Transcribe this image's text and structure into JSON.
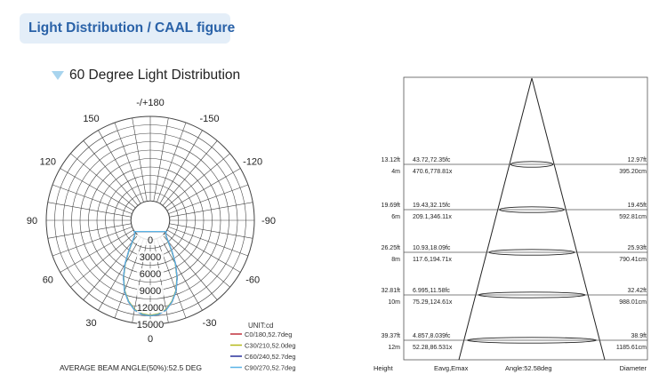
{
  "header": {
    "title": "Light Distribution / CAAL figure"
  },
  "subtitle": "60 Degree Light Distribution",
  "polar": {
    "angle_labels": [
      {
        "text": "-/+180",
        "deg": 180
      },
      {
        "text": "150",
        "deg": 150
      },
      {
        "text": "-150",
        "deg": -150
      },
      {
        "text": "120",
        "deg": 120
      },
      {
        "text": "-120",
        "deg": -120
      },
      {
        "text": "90",
        "deg": 90
      },
      {
        "text": "-90",
        "deg": -90
      },
      {
        "text": "60",
        "deg": 60
      },
      {
        "text": "-60",
        "deg": -60
      },
      {
        "text": "30",
        "deg": 30
      },
      {
        "text": "-30",
        "deg": -30
      },
      {
        "text": "0",
        "deg": 0
      }
    ],
    "radial_labels": [
      "0",
      "3000",
      "6000",
      "9000",
      "12000",
      "15000"
    ],
    "radial_values": [
      0,
      3000,
      6000,
      9000,
      12000,
      15000
    ],
    "unit": "UNIT:cd",
    "legend": [
      {
        "label": "C0/180,52.7deg",
        "color": "#c0303a"
      },
      {
        "label": "C30/210,52.0deg",
        "color": "#b5b81a"
      },
      {
        "label": "C60/240,52.7deg",
        "color": "#28309a"
      },
      {
        "label": "C90/270,52.7deg",
        "color": "#5ab4e6"
      }
    ],
    "beam_angle_text": "AVERAGE BEAM ANGLE(50%):52.5 DEG"
  },
  "chart_data": {
    "type": "polar",
    "radial_max": 15000,
    "angle_unit": "deg",
    "series": [
      {
        "name": "C0/180,52.7deg",
        "color": "#c0303a",
        "points": [
          [
            0,
            13500
          ],
          [
            5,
            13300
          ],
          [
            10,
            12700
          ],
          [
            15,
            11500
          ],
          [
            20,
            9900
          ],
          [
            25,
            7800
          ],
          [
            30,
            5500
          ],
          [
            35,
            3200
          ],
          [
            40,
            1500
          ],
          [
            45,
            500
          ],
          [
            50,
            100
          ],
          [
            55,
            0
          ]
        ]
      },
      {
        "name": "C30/210,52.0deg",
        "color": "#b5b81a",
        "points": [
          [
            0,
            13400
          ],
          [
            5,
            13200
          ],
          [
            10,
            12600
          ],
          [
            15,
            11400
          ],
          [
            20,
            9800
          ],
          [
            25,
            7700
          ],
          [
            30,
            5400
          ],
          [
            35,
            3100
          ],
          [
            40,
            1400
          ],
          [
            45,
            450
          ],
          [
            50,
            90
          ],
          [
            55,
            0
          ]
        ]
      },
      {
        "name": "C60/240,52.7deg",
        "color": "#28309a",
        "points": [
          [
            0,
            13500
          ],
          [
            5,
            13300
          ],
          [
            10,
            12700
          ],
          [
            15,
            11500
          ],
          [
            20,
            9900
          ],
          [
            25,
            7800
          ],
          [
            30,
            5500
          ],
          [
            35,
            3200
          ],
          [
            40,
            1500
          ],
          [
            45,
            500
          ],
          [
            50,
            100
          ],
          [
            55,
            0
          ]
        ]
      },
      {
        "name": "C90/270,52.7deg",
        "color": "#5ab4e6",
        "points": [
          [
            0,
            13500
          ],
          [
            5,
            13300
          ],
          [
            10,
            12700
          ],
          [
            15,
            11500
          ],
          [
            20,
            9900
          ],
          [
            25,
            7800
          ],
          [
            30,
            5500
          ],
          [
            35,
            3200
          ],
          [
            40,
            1500
          ],
          [
            45,
            500
          ],
          [
            50,
            100
          ],
          [
            55,
            0
          ]
        ]
      }
    ]
  },
  "cone": {
    "rows": [
      {
        "height_ft": "13.12ft",
        "height_m": "4m",
        "fc": "43.72,72.35fc",
        "lx": "470.6,778.81x",
        "dia_ft": "12.97ft",
        "dia_cm": "395.20cm"
      },
      {
        "height_ft": "19.69ft",
        "height_m": "6m",
        "fc": "19.43,32.15fc",
        "lx": "209.1,346.11x",
        "dia_ft": "19.45ft",
        "dia_cm": "592.81cm"
      },
      {
        "height_ft": "26.25ft",
        "height_m": "8m",
        "fc": "10.93,18.09fc",
        "lx": "117.6,194.71x",
        "dia_ft": "25.93ft",
        "dia_cm": "790.41cm"
      },
      {
        "height_ft": "32.81ft",
        "height_m": "10m",
        "fc": "6.995,11.58fc",
        "lx": "75.29,124.61x",
        "dia_ft": "32.42ft",
        "dia_cm": "988.01cm"
      },
      {
        "height_ft": "39.37ft",
        "height_m": "12m",
        "fc": "4.857,8.039fc",
        "lx": "52.28,86.531x",
        "dia_ft": "38.9ft",
        "dia_cm": "1185.61cm"
      }
    ],
    "footer": {
      "height": "Height",
      "eavg": "Eavg,Emax",
      "angle": "Angle:52.58deg",
      "diameter": "Diameter"
    }
  }
}
